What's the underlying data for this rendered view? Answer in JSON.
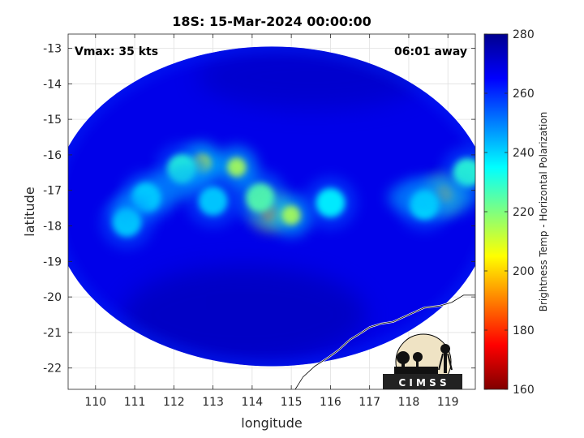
{
  "chart_data": {
    "type": "heatmap",
    "title": "18S: 15-Mar-2024 00:00:00",
    "xlabel": "longitude",
    "ylabel": "latitude",
    "xlim": [
      109.3,
      119.7
    ],
    "ylim": [
      -22.6,
      -12.6
    ],
    "xticks": [
      110,
      111,
      112,
      113,
      114,
      115,
      116,
      117,
      118,
      119
    ],
    "yticks": [
      -13,
      -14,
      -15,
      -16,
      -17,
      -18,
      -19,
      -20,
      -21,
      -22
    ],
    "grid": true,
    "annotations": {
      "left": "Vmax: 35 kts",
      "right": "06:01 away"
    },
    "colorbar": {
      "label": "Brightness Temp - Horizontal Polarization",
      "min": 160,
      "max": 280,
      "ticks": [
        160,
        180,
        200,
        220,
        240,
        260,
        280
      ],
      "colormap": "jet"
    },
    "swath": {
      "center_lon": 114.5,
      "center_lat": -17.45,
      "radius_lon": 5.6,
      "radius_lat": 4.5
    },
    "features": [
      {
        "lon": 114.45,
        "lat": -17.6,
        "tb": 190
      },
      {
        "lon": 114.2,
        "lat": -17.2,
        "tb": 225
      },
      {
        "lon": 115.0,
        "lat": -17.7,
        "tb": 215
      },
      {
        "lon": 113.6,
        "lat": -16.35,
        "tb": 215
      },
      {
        "lon": 112.7,
        "lat": -16.25,
        "tb": 210
      },
      {
        "lon": 112.2,
        "lat": -16.4,
        "tb": 230
      },
      {
        "lon": 111.3,
        "lat": -17.2,
        "tb": 235
      },
      {
        "lon": 110.8,
        "lat": -17.9,
        "tb": 240
      },
      {
        "lon": 118.9,
        "lat": -17.1,
        "tb": 195
      },
      {
        "lon": 118.4,
        "lat": -17.4,
        "tb": 235
      },
      {
        "lon": 119.5,
        "lat": -16.5,
        "tb": 230
      },
      {
        "lon": 116.0,
        "lat": -17.35,
        "tb": 235
      },
      {
        "lon": 113.0,
        "lat": -17.3,
        "tb": 240
      }
    ],
    "coastline": [
      [
        115.1,
        -22.6
      ],
      [
        115.3,
        -22.25
      ],
      [
        115.6,
        -21.95
      ],
      [
        115.95,
        -21.7
      ],
      [
        116.2,
        -21.5
      ],
      [
        116.5,
        -21.2
      ],
      [
        116.8,
        -21.0
      ],
      [
        117.0,
        -20.85
      ],
      [
        117.3,
        -20.75
      ],
      [
        117.6,
        -20.7
      ],
      [
        118.0,
        -20.5
      ],
      [
        118.4,
        -20.3
      ],
      [
        118.8,
        -20.25
      ],
      [
        119.1,
        -20.15
      ],
      [
        119.4,
        -19.95
      ],
      [
        119.7,
        -19.95
      ]
    ]
  },
  "logo": {
    "text": "C I M S S"
  }
}
